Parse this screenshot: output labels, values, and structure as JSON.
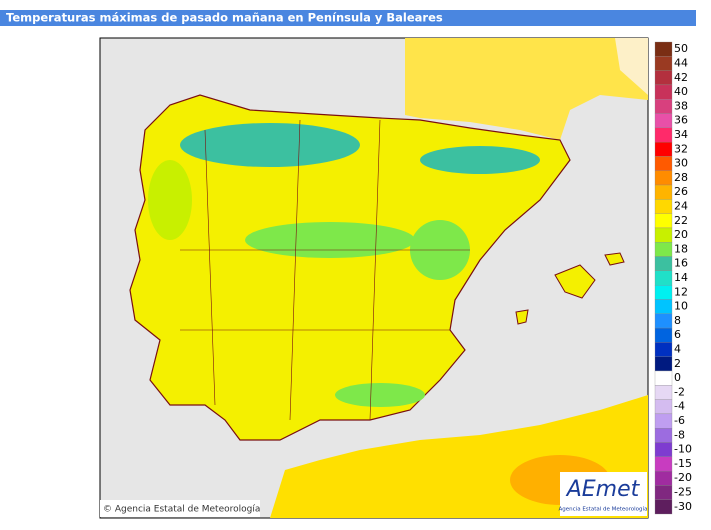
{
  "header": {
    "title": "Temperaturas máximas de pasado mañana en Península y Baleares"
  },
  "legend": {
    "items": [
      {
        "label": 50,
        "color": "#7a2e14"
      },
      {
        "label": 44,
        "color": "#9a3a22"
      },
      {
        "label": 42,
        "color": "#b3303e"
      },
      {
        "label": 40,
        "color": "#c8325a"
      },
      {
        "label": 38,
        "color": "#d8407e"
      },
      {
        "label": 36,
        "color": "#e850a8"
      },
      {
        "label": 34,
        "color": "#ff2a6a"
      },
      {
        "label": 32,
        "color": "#ff0000"
      },
      {
        "label": 30,
        "color": "#ff5a00"
      },
      {
        "label": 28,
        "color": "#ff8c00"
      },
      {
        "label": 26,
        "color": "#ffb400"
      },
      {
        "label": 24,
        "color": "#ffd800"
      },
      {
        "label": 22,
        "color": "#ffff00"
      },
      {
        "label": 20,
        "color": "#c8f000"
      },
      {
        "label": 18,
        "color": "#7ee84a"
      },
      {
        "label": 16,
        "color": "#3cc0a0"
      },
      {
        "label": 14,
        "color": "#20e0c8"
      },
      {
        "label": 12,
        "color": "#00f0f0"
      },
      {
        "label": 10,
        "color": "#00c4ff"
      },
      {
        "label": 8,
        "color": "#1e90ff"
      },
      {
        "label": 6,
        "color": "#0064e0"
      },
      {
        "label": 4,
        "color": "#0030c0"
      },
      {
        "label": 2,
        "color": "#001a80"
      },
      {
        "label": 0,
        "color": "#ffffff"
      },
      {
        "label": -2,
        "color": "#e6d8f4"
      },
      {
        "label": -4,
        "color": "#d4bcf0"
      },
      {
        "label": -6,
        "color": "#bf9ef0"
      },
      {
        "label": -8,
        "color": "#9c6ce0"
      },
      {
        "label": -10,
        "color": "#7e3cd0"
      },
      {
        "label": -15,
        "color": "#c83cc0"
      },
      {
        "label": -20,
        "color": "#a02ca0"
      },
      {
        "label": -25,
        "color": "#802880"
      },
      {
        "label": -30,
        "color": "#5e1e5e"
      }
    ]
  },
  "footer": {
    "copyright": "© Agencia Estatal de Meteorología",
    "logo": "AEmet",
    "logo_caption": "Agencia Estatal de Meteorología"
  }
}
